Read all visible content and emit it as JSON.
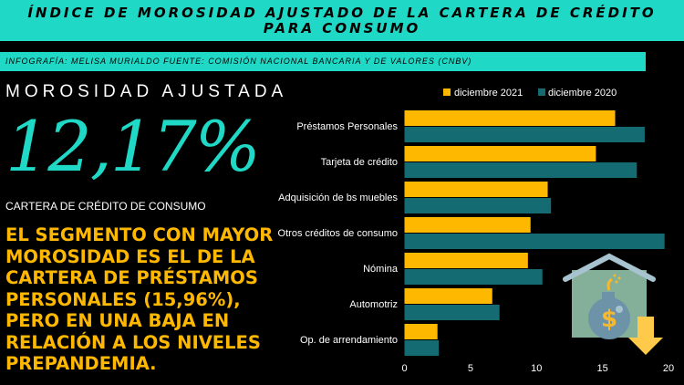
{
  "header": {
    "title": "ÍNDICE DE MOROSIDAD AJUSTADO DE LA CARTERA DE CRÉDITO PARA CONSUMO",
    "credit": "INFOGRAFÍA: MELISA MURIALDO FUENTE: COMISIÓN NACIONAL BANCARIA Y DE VALORES (CNBV)"
  },
  "kpi": {
    "label": "MOROSIDAD AJUSTADA",
    "value": "12,17%",
    "sublabel": "CARTERA DE CRÉDITO DE CONSUMO"
  },
  "headline": "EL SEGMENTO CON MAYOR MOROSIDAD ES EL DE LA CARTERA DE PRÉSTAMOS PERSONALES (15,96%), PERO EN UNA BAJA EN RELACIÓN A LOS NIVELES PREPANDEMIA.",
  "icon": "house-bomb-dollar-down-arrow-icon",
  "chart_data": {
    "type": "bar",
    "orientation": "horizontal",
    "categories": [
      "Préstamos Personales",
      "Tarjeta de crédito",
      "Adquisición de bs muebles",
      "Otros créditos de consumo",
      "Nómina",
      "Automotriz",
      "Op. de arrendamiento"
    ],
    "series": [
      {
        "name": "diciembre 2021",
        "color": "#ffb800",
        "values": [
          15.96,
          14.5,
          10.85,
          9.55,
          9.35,
          6.65,
          2.5
        ]
      },
      {
        "name": "diciembre 2020",
        "color": "#146b72",
        "values": [
          18.2,
          17.6,
          11.1,
          19.7,
          10.45,
          7.2,
          2.6
        ]
      }
    ],
    "xlim": [
      0,
      20
    ],
    "xticks": [
      "0",
      "5",
      "10",
      "15",
      "20"
    ],
    "grid": false,
    "legend": "top"
  }
}
